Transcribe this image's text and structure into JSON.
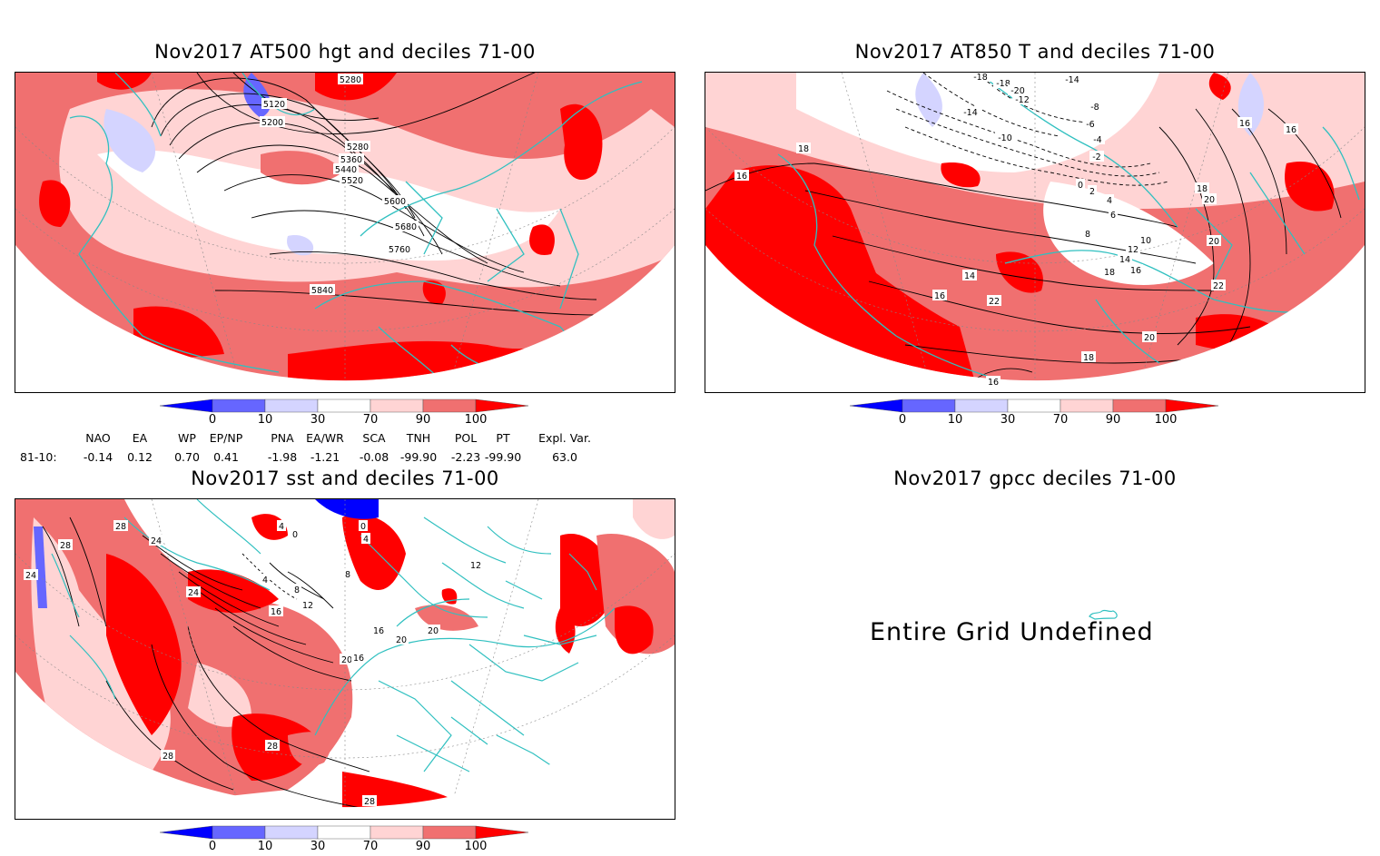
{
  "panels": {
    "hgt": {
      "title": "Nov2017 AT500 hgt and deciles 71-00",
      "contour_labels": [
        "5280",
        "5120",
        "5200",
        "5280",
        "5360",
        "5440",
        "5520",
        "5600",
        "5680",
        "5760",
        "5840"
      ]
    },
    "t850": {
      "title": "Nov2017 AT850 T and deciles 71-00",
      "contour_labels": [
        "-18",
        "-18",
        "-14",
        "-20",
        "-14",
        "-12",
        "-8",
        "-6",
        "-4",
        "-10",
        "-2",
        "0",
        "2",
        "4",
        "6",
        "8",
        "10",
        "12",
        "14",
        "16",
        "18",
        "20",
        "22",
        "14",
        "16",
        "16",
        "18",
        "18",
        "20",
        "22",
        "20",
        "18",
        "16",
        "16",
        "16"
      ]
    },
    "sst": {
      "title": "Nov2017 sst and deciles 71-00",
      "contour_labels": [
        "28",
        "24",
        "28",
        "24",
        "0",
        "4",
        "0",
        "4",
        "8",
        "24",
        "8",
        "4",
        "12",
        "16",
        "16",
        "20",
        "20",
        "20",
        "28",
        "28",
        "28",
        "16",
        "12"
      ]
    },
    "gpcc": {
      "title": "Nov2017 gpcc deciles 71-00",
      "message": "Entire Grid Undefined"
    }
  },
  "colorbar": {
    "ticks": [
      "0",
      "10",
      "30",
      "70",
      "90",
      "100"
    ],
    "colors": [
      "#0000ff",
      "#6666ff",
      "#d4d4ff",
      "#ffffff",
      "#ffd4d4",
      "#f07070",
      "#ff0000"
    ]
  },
  "indices": {
    "header": [
      "NAO",
      "EA",
      "WP",
      "EP/NP",
      "PNA",
      "EA/WR",
      "SCA",
      "TNH",
      "POL",
      "PT",
      "Expl. Var."
    ],
    "row_label": "81-10:",
    "values": [
      "-0.14",
      "0.12",
      "0.70",
      "0.41",
      "-1.98",
      "-1.21",
      "-0.08",
      "-99.90",
      "-2.23",
      "-99.90",
      "63.0"
    ]
  }
}
